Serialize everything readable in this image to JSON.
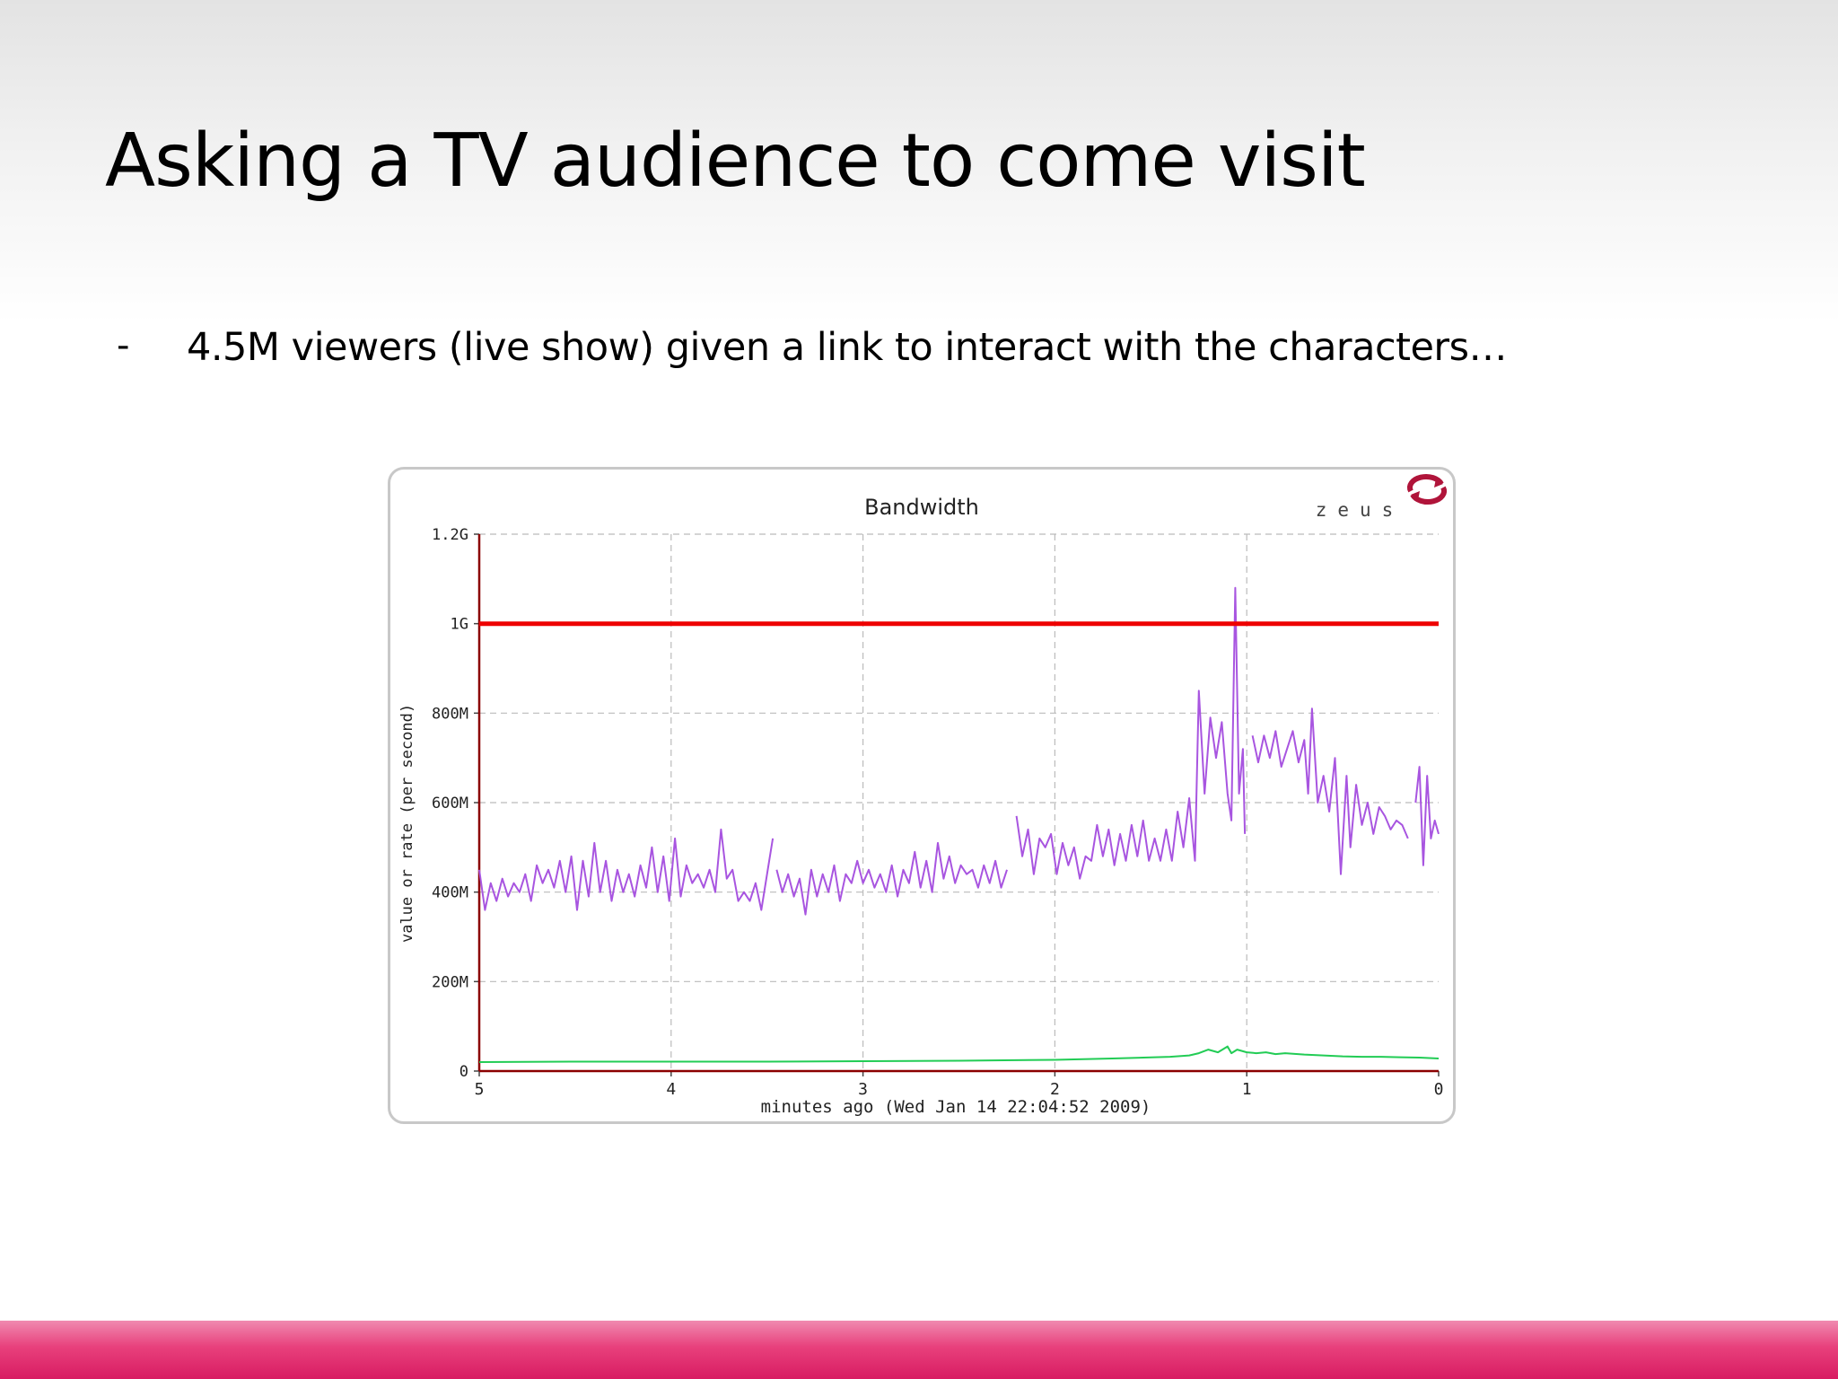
{
  "slide": {
    "title": "Asking a TV audience to come visit",
    "bullet_marker": "-",
    "bullet_text": "4.5M viewers (live show) given a link to interact with the characters…",
    "accent_color": "#e01e64"
  },
  "chart_data": {
    "type": "line",
    "title": "Bandwidth",
    "brand": "zeus",
    "brand_logo": "zeus-logo-icon",
    "xlabel": "minutes ago (Wed Jan 14 22:04:52 2009)",
    "ylabel": "value or rate (per second)",
    "xlim": [
      5,
      0
    ],
    "ylim": [
      0,
      1200000000
    ],
    "xticks": [
      5,
      4,
      3,
      2,
      1,
      0
    ],
    "xtick_labels": [
      "5",
      "4",
      "3",
      "2",
      "1",
      "0"
    ],
    "yticks": [
      0,
      200000000,
      400000000,
      600000000,
      800000000,
      1000000000,
      1200000000
    ],
    "ytick_labels": [
      "0",
      "200M",
      "400M",
      "600M",
      "800M",
      "1G",
      "1.2G"
    ],
    "grid": true,
    "colors": {
      "bandwidth": "#a855e0",
      "baseline": "#22cc55",
      "limit": "#ee0000",
      "axis": "#8b0000"
    },
    "series": [
      {
        "color": "#a855e0",
        "segments": [
          [
            [
              5.0,
              450
            ],
            [
              4.97,
              360
            ],
            [
              4.94,
              420
            ],
            [
              4.91,
              380
            ],
            [
              4.88,
              430
            ],
            [
              4.85,
              390
            ],
            [
              4.82,
              420
            ],
            [
              4.79,
              400
            ],
            [
              4.76,
              440
            ],
            [
              4.73,
              380
            ],
            [
              4.7,
              460
            ],
            [
              4.67,
              420
            ],
            [
              4.64,
              450
            ],
            [
              4.61,
              410
            ],
            [
              4.58,
              470
            ],
            [
              4.55,
              400
            ],
            [
              4.52,
              480
            ],
            [
              4.49,
              360
            ],
            [
              4.46,
              470
            ],
            [
              4.43,
              390
            ],
            [
              4.4,
              510
            ],
            [
              4.37,
              400
            ],
            [
              4.34,
              470
            ],
            [
              4.31,
              380
            ],
            [
              4.28,
              450
            ],
            [
              4.25,
              400
            ],
            [
              4.22,
              440
            ],
            [
              4.19,
              390
            ],
            [
              4.16,
              460
            ],
            [
              4.13,
              410
            ],
            [
              4.1,
              500
            ],
            [
              4.07,
              400
            ],
            [
              4.04,
              480
            ],
            [
              4.01,
              380
            ],
            [
              3.98,
              520
            ],
            [
              3.95,
              390
            ],
            [
              3.92,
              460
            ],
            [
              3.89,
              420
            ],
            [
              3.86,
              440
            ],
            [
              3.83,
              410
            ],
            [
              3.8,
              450
            ],
            [
              3.77,
              400
            ],
            [
              3.74,
              540
            ],
            [
              3.71,
              430
            ],
            [
              3.68,
              450
            ],
            [
              3.65,
              380
            ],
            [
              3.62,
              400
            ],
            [
              3.59,
              380
            ],
            [
              3.56,
              420
            ],
            [
              3.53,
              360
            ],
            [
              3.5,
              440
            ],
            [
              3.47,
              520
            ]
          ],
          [
            [
              3.45,
              450
            ],
            [
              3.42,
              400
            ],
            [
              3.39,
              440
            ],
            [
              3.36,
              390
            ],
            [
              3.33,
              430
            ],
            [
              3.3,
              350
            ],
            [
              3.27,
              450
            ],
            [
              3.24,
              390
            ],
            [
              3.21,
              440
            ],
            [
              3.18,
              400
            ],
            [
              3.15,
              460
            ],
            [
              3.12,
              380
            ],
            [
              3.09,
              440
            ],
            [
              3.06,
              420
            ],
            [
              3.03,
              470
            ],
            [
              3.0,
              420
            ],
            [
              2.97,
              450
            ],
            [
              2.94,
              410
            ],
            [
              2.91,
              440
            ],
            [
              2.88,
              400
            ],
            [
              2.85,
              460
            ],
            [
              2.82,
              390
            ],
            [
              2.79,
              450
            ],
            [
              2.76,
              420
            ],
            [
              2.73,
              490
            ],
            [
              2.7,
              410
            ],
            [
              2.67,
              470
            ],
            [
              2.64,
              400
            ],
            [
              2.61,
              510
            ],
            [
              2.58,
              430
            ],
            [
              2.55,
              480
            ],
            [
              2.52,
              420
            ],
            [
              2.49,
              460
            ],
            [
              2.46,
              440
            ],
            [
              2.43,
              450
            ],
            [
              2.4,
              410
            ],
            [
              2.37,
              460
            ],
            [
              2.34,
              420
            ],
            [
              2.31,
              470
            ],
            [
              2.28,
              410
            ],
            [
              2.25,
              450
            ]
          ],
          [
            [
              2.2,
              570
            ],
            [
              2.17,
              480
            ],
            [
              2.14,
              540
            ],
            [
              2.11,
              440
            ],
            [
              2.08,
              520
            ],
            [
              2.05,
              500
            ],
            [
              2.02,
              530
            ],
            [
              1.99,
              440
            ],
            [
              1.96,
              510
            ],
            [
              1.93,
              460
            ],
            [
              1.9,
              500
            ],
            [
              1.87,
              430
            ],
            [
              1.84,
              480
            ],
            [
              1.81,
              470
            ],
            [
              1.78,
              550
            ],
            [
              1.75,
              480
            ],
            [
              1.72,
              540
            ],
            [
              1.69,
              460
            ],
            [
              1.66,
              530
            ],
            [
              1.63,
              470
            ],
            [
              1.6,
              550
            ],
            [
              1.57,
              480
            ],
            [
              1.54,
              560
            ],
            [
              1.51,
              470
            ],
            [
              1.48,
              520
            ],
            [
              1.45,
              470
            ],
            [
              1.42,
              540
            ],
            [
              1.39,
              470
            ],
            [
              1.36,
              580
            ],
            [
              1.33,
              500
            ],
            [
              1.3,
              610
            ],
            [
              1.27,
              470
            ],
            [
              1.25,
              850
            ],
            [
              1.22,
              620
            ],
            [
              1.19,
              790
            ],
            [
              1.16,
              700
            ],
            [
              1.13,
              780
            ],
            [
              1.1,
              620
            ],
            [
              1.08,
              560
            ],
            [
              1.06,
              1080
            ],
            [
              1.04,
              620
            ],
            [
              1.02,
              720
            ],
            [
              1.01,
              530
            ]
          ],
          [
            [
              0.97,
              750
            ],
            [
              0.94,
              690
            ],
            [
              0.91,
              750
            ],
            [
              0.88,
              700
            ],
            [
              0.85,
              760
            ],
            [
              0.82,
              680
            ],
            [
              0.79,
              720
            ],
            [
              0.76,
              760
            ],
            [
              0.73,
              690
            ],
            [
              0.7,
              740
            ],
            [
              0.68,
              620
            ],
            [
              0.66,
              810
            ],
            [
              0.63,
              600
            ],
            [
              0.6,
              660
            ],
            [
              0.57,
              580
            ],
            [
              0.54,
              700
            ],
            [
              0.51,
              440
            ],
            [
              0.48,
              660
            ],
            [
              0.46,
              500
            ],
            [
              0.43,
              640
            ],
            [
              0.4,
              550
            ],
            [
              0.37,
              600
            ],
            [
              0.34,
              530
            ],
            [
              0.31,
              590
            ],
            [
              0.28,
              570
            ],
            [
              0.25,
              540
            ],
            [
              0.22,
              560
            ],
            [
              0.19,
              550
            ],
            [
              0.16,
              520
            ]
          ],
          [
            [
              0.12,
              600
            ],
            [
              0.1,
              680
            ],
            [
              0.08,
              460
            ],
            [
              0.06,
              660
            ],
            [
              0.04,
              520
            ],
            [
              0.02,
              560
            ],
            [
              0.0,
              530
            ]
          ]
        ]
      },
      {
        "color": "#22cc55",
        "segments": [
          [
            [
              5.0,
              20
            ],
            [
              4.5,
              21
            ],
            [
              4.0,
              21
            ],
            [
              3.5,
              21
            ],
            [
              3.0,
              22
            ],
            [
              2.5,
              23
            ],
            [
              2.0,
              25
            ],
            [
              1.7,
              28
            ],
            [
              1.4,
              32
            ],
            [
              1.3,
              35
            ],
            [
              1.25,
              40
            ],
            [
              1.2,
              48
            ],
            [
              1.15,
              42
            ],
            [
              1.1,
              55
            ],
            [
              1.08,
              40
            ],
            [
              1.05,
              48
            ],
            [
              1.0,
              42
            ],
            [
              0.95,
              40
            ],
            [
              0.9,
              42
            ],
            [
              0.85,
              38
            ],
            [
              0.8,
              40
            ],
            [
              0.7,
              37
            ],
            [
              0.6,
              35
            ],
            [
              0.5,
              33
            ],
            [
              0.4,
              32
            ],
            [
              0.3,
              32
            ],
            [
              0.2,
              31
            ],
            [
              0.1,
              30
            ],
            [
              0.0,
              28
            ]
          ]
        ]
      },
      {
        "color": "#ee0000",
        "segments": [
          [
            [
              5.0,
              1000
            ],
            [
              0.0,
              1000
            ]
          ]
        ]
      }
    ],
    "value_unit": "M"
  }
}
